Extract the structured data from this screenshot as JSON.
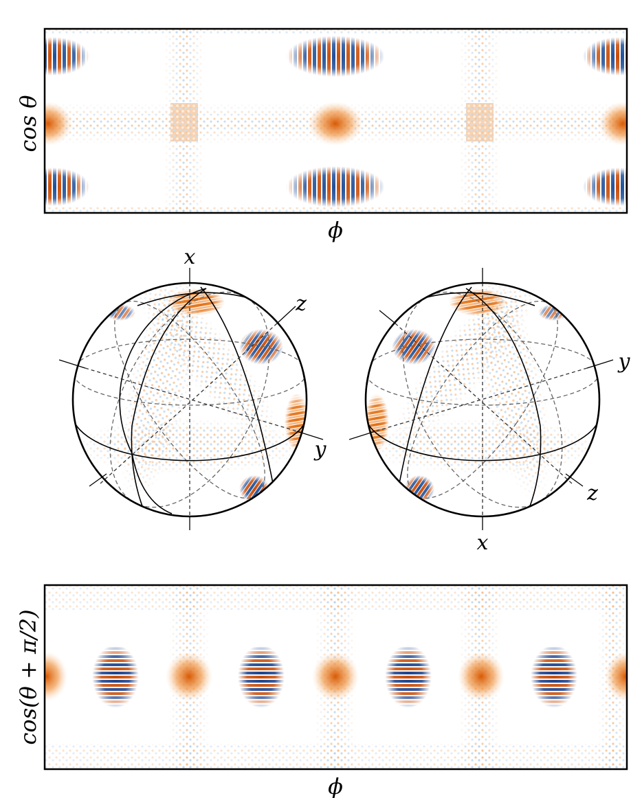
{
  "labels": {
    "top_ylabel": "cos θ",
    "top_xlabel": "ϕ",
    "bottom_ylabel": "cos(θ + π/2)",
    "bottom_xlabel": "ϕ"
  },
  "sphere_left": {
    "axis_x": "x",
    "axis_y": "y",
    "axis_z": "z"
  },
  "sphere_right": {
    "axis_x": "x",
    "axis_y": "y",
    "axis_z": "z"
  },
  "colors": {
    "orange": "#e66a0a",
    "dark_orange": "#b83c02",
    "blue": "#3a7fc4",
    "dark_blue": "#0b2f7a",
    "frame": "#000000"
  }
}
